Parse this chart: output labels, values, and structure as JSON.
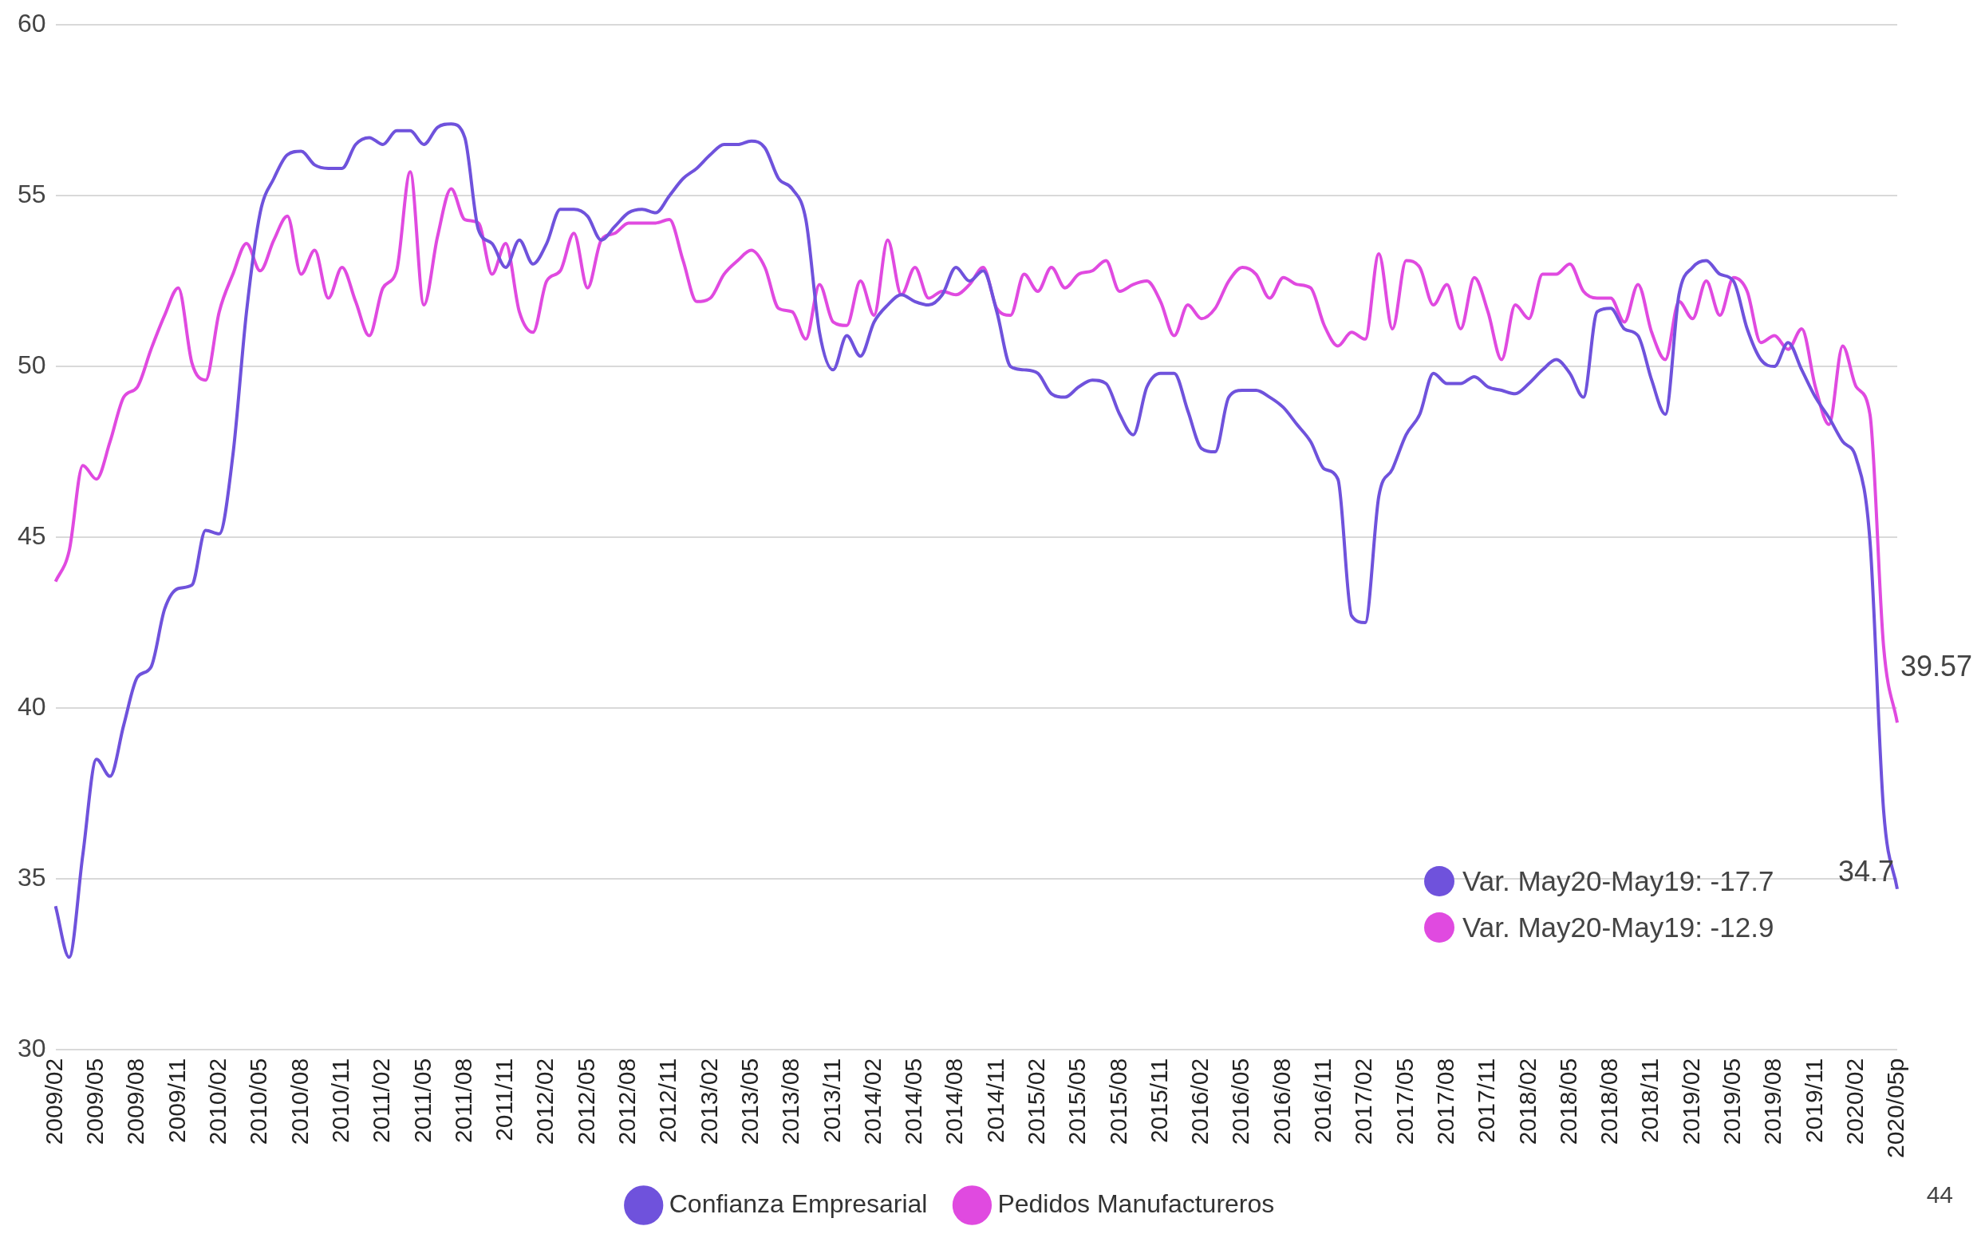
{
  "chart_data": {
    "type": "line",
    "categories": [
      "2009/02",
      null,
      null,
      "2009/05",
      null,
      null,
      "2009/08",
      null,
      null,
      "2009/11",
      null,
      null,
      "2010/02",
      null,
      null,
      "2010/05",
      null,
      null,
      "2010/08",
      null,
      null,
      "2010/11",
      null,
      null,
      "2011/02",
      null,
      null,
      "2011/05",
      null,
      null,
      "2011/08",
      null,
      null,
      "2011/11",
      null,
      null,
      "2012/02",
      null,
      null,
      "2012/05",
      null,
      null,
      "2012/08",
      null,
      null,
      "2012/11",
      null,
      null,
      "2013/02",
      null,
      null,
      "2013/05",
      null,
      null,
      "2013/08",
      null,
      null,
      "2013/11",
      null,
      null,
      "2014/02",
      null,
      null,
      "2014/05",
      null,
      null,
      "2014/08",
      null,
      null,
      "2014/11",
      null,
      null,
      "2015/02",
      null,
      null,
      "2015/05",
      null,
      null,
      "2015/08",
      null,
      null,
      "2015/11",
      null,
      null,
      "2016/02",
      null,
      null,
      "2016/05",
      null,
      null,
      "2016/08",
      null,
      null,
      "2016/11",
      null,
      null,
      "2017/02",
      null,
      null,
      "2017/05",
      null,
      null,
      "2017/08",
      null,
      null,
      "2017/11",
      null,
      null,
      "2018/02",
      null,
      null,
      "2018/05",
      null,
      null,
      "2018/08",
      null,
      null,
      "2018/11",
      null,
      null,
      "2019/02",
      null,
      null,
      "2019/05",
      null,
      null,
      "2019/08",
      null,
      null,
      "2019/11",
      null,
      null,
      "2020/02",
      null,
      null,
      "2020/05p"
    ],
    "series": [
      {
        "name": "Confianza Empresarial",
        "color": "#6f52dc",
        "values": [
          34.2,
          32.7,
          35.7,
          38.5,
          38.0,
          39.5,
          40.9,
          41.2,
          42.9,
          43.5,
          43.6,
          45.2,
          45.1,
          47.4,
          51.6,
          54.5,
          55.5,
          56.2,
          56.3,
          55.9,
          55.8,
          55.8,
          56.5,
          56.7,
          56.5,
          56.9,
          56.9,
          56.5,
          57.0,
          57.1,
          56.7,
          54.0,
          53.6,
          52.9,
          53.7,
          53.0,
          53.6,
          54.6,
          54.6,
          54.4,
          53.7,
          54.1,
          54.5,
          54.6,
          54.5,
          55.0,
          55.5,
          55.8,
          56.2,
          56.5,
          56.5,
          56.6,
          56.4,
          55.5,
          55.2,
          54.3,
          51.0,
          49.9,
          50.9,
          50.3,
          51.3,
          51.8,
          52.1,
          51.9,
          51.8,
          52.1,
          52.9,
          52.5,
          52.8,
          51.6,
          50.0,
          49.9,
          49.8,
          49.2,
          49.1,
          49.4,
          49.6,
          49.5,
          48.6,
          48.0,
          49.4,
          49.8,
          49.8,
          48.7,
          47.6,
          47.5,
          49.1,
          49.3,
          49.3,
          49.1,
          48.8,
          48.3,
          47.8,
          47.0,
          46.7,
          42.7,
          42.5,
          46.2,
          47.0,
          48.0,
          48.6,
          49.8,
          49.5,
          49.5,
          49.7,
          49.4,
          49.3,
          49.2,
          49.5,
          49.9,
          50.2,
          49.8,
          49.1,
          51.6,
          51.7,
          51.1,
          50.9,
          49.6,
          48.6,
          52.1,
          52.9,
          53.1,
          52.7,
          52.5,
          51.1,
          50.2,
          50.0,
          50.7,
          49.9,
          49.1,
          48.5,
          47.8,
          47.3,
          44.9,
          37.0,
          34.7
        ],
        "value_labels": [
          null,
          null,
          null,
          null,
          null,
          null,
          null,
          null,
          null,
          null,
          null,
          null,
          null,
          null,
          null,
          null,
          null,
          null,
          null,
          null,
          null,
          null,
          null,
          null,
          null,
          null,
          null,
          null,
          null,
          null,
          null,
          null,
          null,
          null,
          null,
          null,
          null,
          null,
          null,
          null,
          null,
          null,
          null,
          null,
          null,
          null,
          null,
          null,
          null,
          null,
          null,
          null,
          null,
          null,
          null,
          null,
          null,
          null,
          null,
          null,
          null,
          null,
          null,
          null,
          null,
          null,
          null,
          null,
          null,
          null,
          null,
          null,
          null,
          null,
          null,
          null,
          null,
          null,
          null,
          null,
          null,
          null,
          null,
          null,
          null,
          null,
          null,
          null,
          null,
          null,
          null,
          null,
          null,
          null,
          null,
          null,
          null,
          null,
          null,
          null,
          null,
          null,
          null,
          null,
          null,
          null,
          null,
          null,
          null,
          null,
          null,
          null,
          null,
          null,
          null,
          null,
          null,
          null,
          null,
          null,
          null,
          null,
          null,
          null,
          null,
          null,
          null,
          null,
          null,
          null,
          null,
          null,
          null,
          null,
          null,
          "34.7"
        ]
      },
      {
        "name": "Pedidos Manufactureros",
        "color": "#e04ae0",
        "values": [
          43.7,
          44.6,
          47.1,
          46.7,
          47.8,
          49.1,
          49.4,
          50.5,
          51.5,
          52.3,
          50.1,
          49.6,
          51.6,
          52.7,
          53.6,
          52.8,
          53.7,
          54.4,
          52.7,
          53.4,
          52.0,
          52.9,
          51.9,
          50.9,
          52.3,
          52.8,
          55.7,
          51.8,
          53.8,
          55.2,
          54.3,
          54.2,
          52.7,
          53.6,
          51.6,
          51.0,
          52.5,
          52.8,
          53.9,
          52.3,
          53.7,
          53.9,
          54.2,
          54.2,
          54.2,
          54.3,
          53.1,
          51.9,
          52.0,
          52.7,
          53.1,
          53.4,
          52.9,
          51.7,
          51.6,
          50.8,
          52.4,
          51.3,
          51.2,
          52.5,
          51.5,
          53.7,
          52.1,
          52.9,
          52.0,
          52.2,
          52.1,
          52.4,
          52.9,
          51.7,
          51.5,
          52.7,
          52.2,
          52.9,
          52.3,
          52.7,
          52.8,
          53.1,
          52.2,
          52.4,
          52.5,
          51.9,
          50.9,
          51.8,
          51.4,
          51.7,
          52.5,
          52.9,
          52.7,
          52.0,
          52.6,
          52.4,
          52.3,
          51.2,
          50.6,
          51.0,
          50.8,
          53.3,
          51.1,
          53.1,
          52.9,
          51.8,
          52.4,
          51.1,
          52.6,
          51.6,
          50.2,
          51.8,
          51.4,
          52.7,
          52.7,
          53.0,
          52.2,
          52.0,
          52.0,
          51.3,
          52.4,
          51.0,
          50.2,
          51.9,
          51.4,
          52.5,
          51.5,
          52.6,
          52.2,
          50.7,
          50.9,
          50.5,
          51.1,
          49.4,
          48.3,
          50.6,
          49.4,
          48.6,
          41.8,
          39.57
        ],
        "value_labels": [
          null,
          null,
          null,
          null,
          null,
          null,
          null,
          null,
          null,
          null,
          null,
          null,
          null,
          null,
          null,
          null,
          null,
          null,
          null,
          null,
          null,
          null,
          null,
          null,
          null,
          null,
          null,
          null,
          null,
          null,
          null,
          null,
          null,
          null,
          null,
          null,
          null,
          null,
          null,
          null,
          null,
          null,
          null,
          null,
          null,
          null,
          null,
          null,
          null,
          null,
          null,
          null,
          null,
          null,
          null,
          null,
          null,
          null,
          null,
          null,
          null,
          null,
          null,
          null,
          null,
          null,
          null,
          null,
          null,
          null,
          null,
          null,
          null,
          null,
          null,
          null,
          null,
          null,
          null,
          null,
          null,
          null,
          null,
          null,
          null,
          null,
          null,
          null,
          null,
          null,
          null,
          null,
          null,
          null,
          null,
          null,
          null,
          null,
          null,
          null,
          null,
          null,
          null,
          null,
          null,
          null,
          null,
          null,
          null,
          null,
          null,
          null,
          null,
          null,
          null,
          null,
          null,
          null,
          null,
          null,
          null,
          null,
          null,
          null,
          null,
          null,
          null,
          null,
          null,
          null,
          null,
          null,
          null,
          null,
          null,
          "39.57"
        ]
      }
    ],
    "ylim": [
      30,
      60
    ],
    "yticks": [
      30,
      35,
      40,
      45,
      50,
      55,
      60
    ],
    "grid": "y",
    "legend": "bottom",
    "annotations": [
      "Var. May20-May19: -17.7",
      "Var. May20-May19: -12.9",
      "44"
    ]
  }
}
